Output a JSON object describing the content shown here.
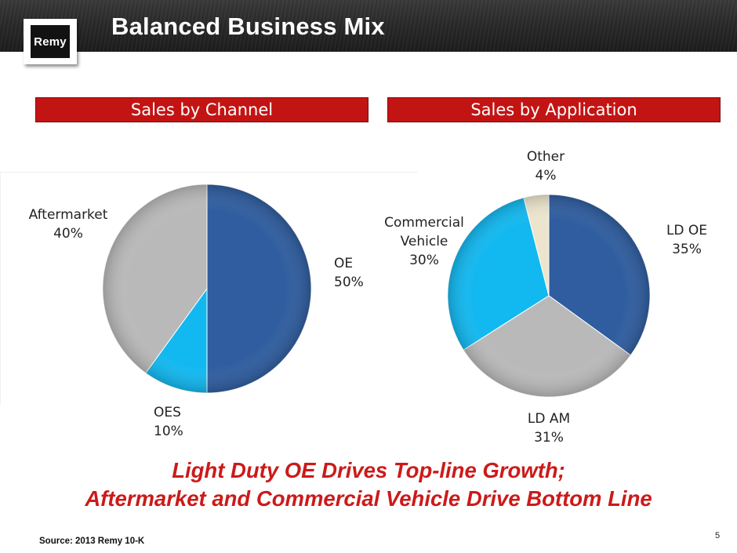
{
  "slide": {
    "title": "Balanced Business Mix",
    "logo_text": "Remy",
    "page_number": "5",
    "source": "Source: 2013 Remy 10-K",
    "tagline_line1": "Light Duty OE Drives Top-line Growth;",
    "tagline_line2": "Aftermarket and Commercial Vehicle Drive Bottom Line"
  },
  "colors": {
    "accent_red": "#c31414",
    "tagline_red": "#cc1a1a",
    "dark_blue": "#2f5d9f",
    "cyan": "#12b8f0",
    "gray": "#b9b9b9",
    "beige": "#ece4cc"
  },
  "chart_data": [
    {
      "type": "pie",
      "title": "Sales by Channel",
      "slices": [
        {
          "name": "OE",
          "value": 50,
          "label": "OE",
          "pct": "50%",
          "color": "#2f5d9f"
        },
        {
          "name": "OES",
          "value": 10,
          "label": "OES",
          "pct": "10%",
          "color": "#12b8f0"
        },
        {
          "name": "Aftermarket",
          "value": 40,
          "label": "Aftermarket",
          "pct": "40%",
          "color": "#b9b9b9"
        }
      ]
    },
    {
      "type": "pie",
      "title": "Sales by Application",
      "slices": [
        {
          "name": "LD OE",
          "value": 35,
          "label": "LD OE",
          "pct": "35%",
          "color": "#2f5d9f"
        },
        {
          "name": "LD AM",
          "value": 31,
          "label": "LD AM",
          "pct": "31%",
          "color": "#b9b9b9"
        },
        {
          "name": "Commercial Vehicle",
          "value": 30,
          "label": "Commercial Vehicle",
          "label_line1": "Commercial",
          "label_line2": "Vehicle",
          "pct": "30%",
          "color": "#12b8f0"
        },
        {
          "name": "Other",
          "value": 4,
          "label": "Other",
          "pct": "4%",
          "color": "#ece4cc"
        }
      ]
    }
  ]
}
